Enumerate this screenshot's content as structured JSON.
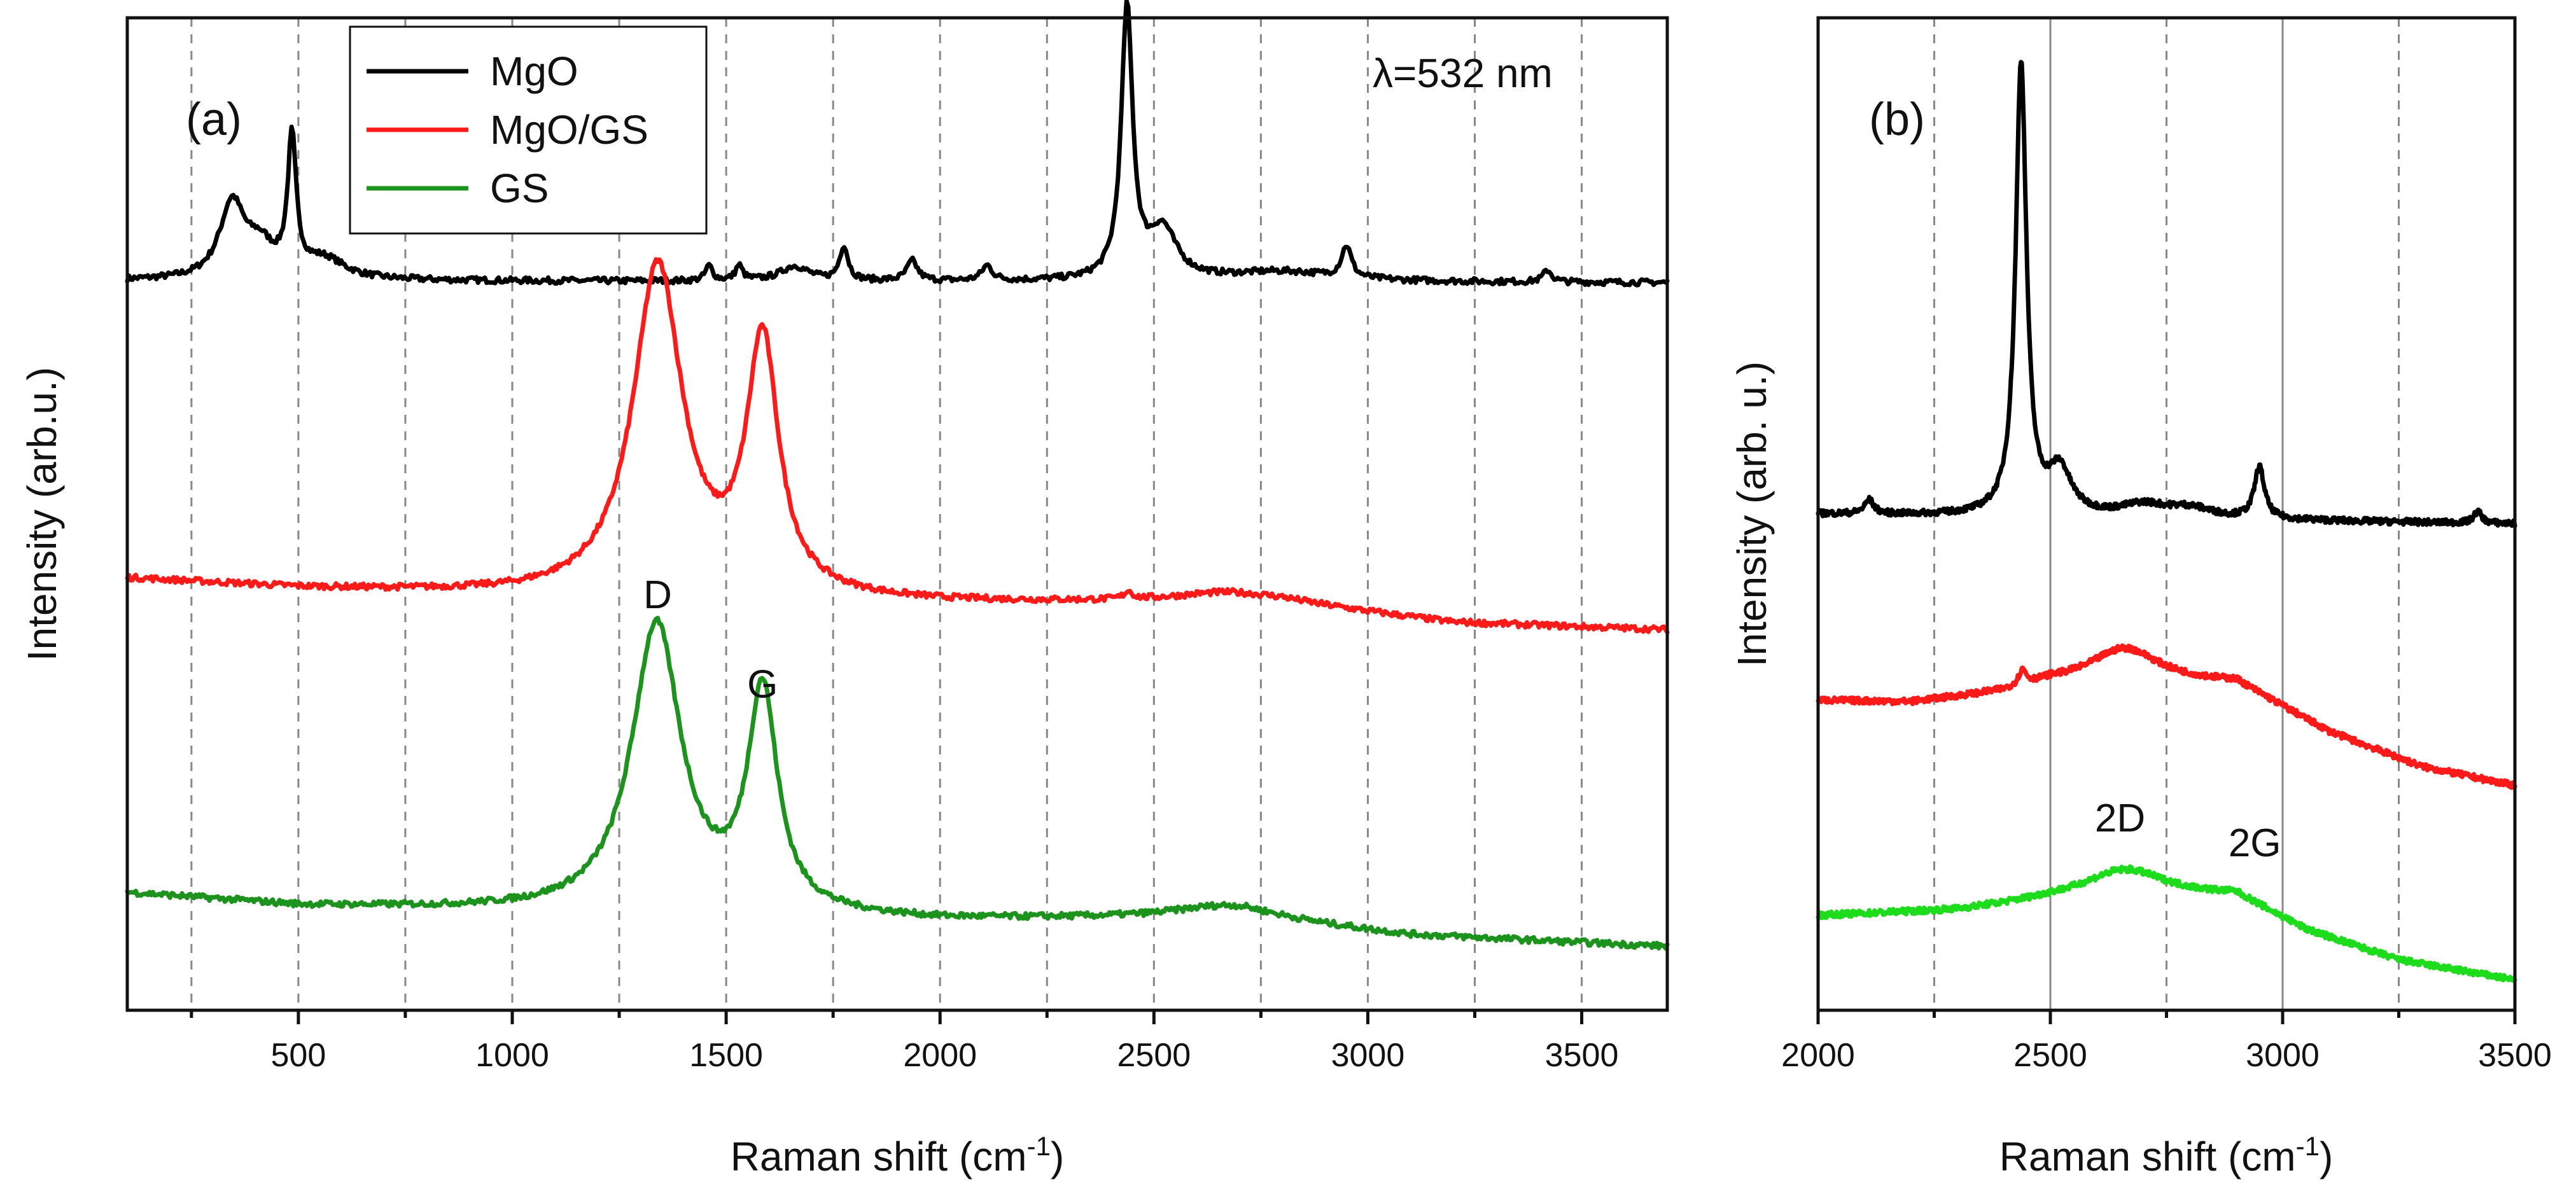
{
  "chart_data": [
    {
      "panel": "(a)",
      "type": "line",
      "annotation": "λ=532 nm",
      "xlabel_main": "Raman shift (cm",
      "xlabel_sup": "-1",
      "xlabel_end": ")",
      "ylabel": "Intensity (arb.u.)",
      "xlim": [
        100,
        3700
      ],
      "ylim": [
        0,
        1
      ],
      "major_ticks": [
        500,
        1000,
        1500,
        2000,
        2500,
        3000,
        3500
      ],
      "minor_ticks": [
        250,
        750,
        1250,
        1750,
        2250,
        2750,
        3250
      ],
      "grid": "dashed vertical",
      "legend": {
        "position": "top-left",
        "entries": [
          {
            "label": "MgO",
            "color": "#000000"
          },
          {
            "label": "MgO/GS",
            "color": "#ff1a1a"
          },
          {
            "label": "GS",
            "color": "#1c931c"
          }
        ]
      },
      "peak_labels": [
        {
          "text": "D",
          "x": 1340,
          "y": 0.405
        },
        {
          "text": "G",
          "x": 1585,
          "y": 0.315
        }
      ],
      "series": [
        {
          "name": "MgO",
          "color": "#000000",
          "baseline": [
            [
              100,
              0.735
            ],
            [
              3700,
              0.733
            ]
          ],
          "peaks": [
            {
              "center": 345,
              "height": 0.075,
              "width": 35
            },
            {
              "center": 410,
              "height": 0.03,
              "width": 40
            },
            {
              "center": 485,
              "height": 0.135,
              "width": 12
            },
            {
              "center": 560,
              "height": 0.02,
              "width": 60
            },
            {
              "center": 1460,
              "height": 0.015,
              "width": 10
            },
            {
              "center": 1530,
              "height": 0.015,
              "width": 10
            },
            {
              "center": 1660,
              "height": 0.015,
              "width": 40
            },
            {
              "center": 1775,
              "height": 0.035,
              "width": 12
            },
            {
              "center": 1935,
              "height": 0.02,
              "width": 15
            },
            {
              "center": 2110,
              "height": 0.015,
              "width": 15
            },
            {
              "center": 2437,
              "height": 0.272,
              "width": 16
            },
            {
              "center": 2520,
              "height": 0.05,
              "width": 40
            },
            {
              "center": 2800,
              "height": 0.01,
              "width": 150
            },
            {
              "center": 2950,
              "height": 0.032,
              "width": 14
            },
            {
              "center": 3420,
              "height": 0.012,
              "width": 12
            }
          ]
        },
        {
          "name": "MgO/GS",
          "color": "#ff1a1a",
          "baseline": [
            [
              100,
              0.435
            ],
            [
              500,
              0.425
            ],
            [
              1000,
              0.418
            ],
            [
              2000,
              0.41
            ],
            [
              2800,
              0.41
            ],
            [
              3200,
              0.39
            ],
            [
              3700,
              0.383
            ]
          ],
          "peaks": [
            {
              "center": 1340,
              "height": 0.332,
              "width": 70
            },
            {
              "center": 1585,
              "height": 0.252,
              "width": 45
            },
            {
              "center": 2670,
              "height": 0.01,
              "width": 150
            },
            {
              "center": 2440,
              "height": 0.008,
              "width": 12
            }
          ]
        },
        {
          "name": "GS",
          "color": "#1c931c",
          "baseline": [
            [
              100,
              0.118
            ],
            [
              500,
              0.105
            ],
            [
              1000,
              0.1
            ],
            [
              2000,
              0.09
            ],
            [
              2700,
              0.093
            ],
            [
              3100,
              0.075
            ],
            [
              3700,
              0.064
            ]
          ],
          "peaks": [
            {
              "center": 1337,
              "height": 0.29,
              "width": 70
            },
            {
              "center": 1585,
              "height": 0.22,
              "width": 42
            },
            {
              "center": 2670,
              "height": 0.012,
              "width": 150
            }
          ]
        }
      ]
    },
    {
      "panel": "(b)",
      "type": "line",
      "xlabel_main": "Raman shift (cm",
      "xlabel_sup": "-1",
      "xlabel_end": ")",
      "ylabel": "Intensity (arb. u.)",
      "xlim": [
        2000,
        3500
      ],
      "ylim": [
        0,
        1
      ],
      "major_ticks": [
        2000,
        2500,
        3000,
        3500
      ],
      "minor_ticks": [
        2250,
        2750,
        3250
      ],
      "grid": "solid at major, dashed at minor",
      "peak_labels": [
        {
          "text": "2D",
          "x": 2650,
          "y": 0.18
        },
        {
          "text": "2G",
          "x": 2940,
          "y": 0.155
        }
      ],
      "series": [
        {
          "name": "MgO",
          "color": "#000000",
          "baseline": [
            [
              2000,
              0.5
            ],
            [
              3500,
              0.49
            ]
          ],
          "peaks": [
            {
              "center": 2110,
              "height": 0.014,
              "width": 12
            },
            {
              "center": 2437,
              "height": 0.455,
              "width": 14
            },
            {
              "center": 2520,
              "height": 0.045,
              "width": 30
            },
            {
              "center": 2700,
              "height": 0.012,
              "width": 60
            },
            {
              "center": 2800,
              "height": 0.01,
              "width": 60
            },
            {
              "center": 2950,
              "height": 0.052,
              "width": 13
            },
            {
              "center": 3420,
              "height": 0.012,
              "width": 10
            }
          ]
        },
        {
          "name": "MgO/GS",
          "color": "#ff1a1a",
          "baseline": [
            [
              2000,
              0.312
            ],
            [
              2200,
              0.31
            ],
            [
              2400,
              0.32
            ],
            [
              2500,
              0.33
            ],
            [
              2900,
              0.33
            ],
            [
              3100,
              0.28
            ],
            [
              3300,
              0.245
            ],
            [
              3500,
              0.226
            ]
          ],
          "peaks": [
            {
              "center": 2440,
              "height": 0.015,
              "width": 10
            },
            {
              "center": 2660,
              "height": 0.035,
              "width": 90
            }
          ]
        },
        {
          "name": "GS",
          "color": "#1cdc1c",
          "baseline": [
            [
              2000,
              0.095
            ],
            [
              2300,
              0.1
            ],
            [
              2500,
              0.11
            ],
            [
              2900,
              0.115
            ],
            [
              3050,
              0.08
            ],
            [
              3250,
              0.05
            ],
            [
              3500,
              0.03
            ]
          ],
          "peaks": [
            {
              "center": 2660,
              "height": 0.03,
              "width": 110
            }
          ]
        }
      ]
    }
  ]
}
